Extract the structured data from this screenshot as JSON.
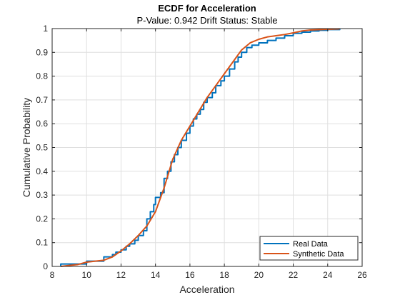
{
  "chart_data": {
    "type": "line",
    "title": "ECDF for Acceleration",
    "subtitle": "P-Value: 0.942 Drift Status: Stable",
    "xlabel": "Acceleration",
    "ylabel": "Cumulative Probability",
    "xlim": [
      8,
      26
    ],
    "ylim": [
      0,
      1
    ],
    "xticks": [
      "8",
      "10",
      "12",
      "14",
      "16",
      "18",
      "20",
      "22",
      "24",
      "26"
    ],
    "yticks": [
      "0",
      "0.1",
      "0.2",
      "0.3",
      "0.4",
      "0.5",
      "0.6",
      "0.7",
      "0.8",
      "0.9",
      "1"
    ],
    "grid": true,
    "legend_position": "bottom-right",
    "series": [
      {
        "name": "Real Data",
        "style": "step",
        "color": "#0072BD",
        "points": [
          [
            8.5,
            0.0
          ],
          [
            8.5,
            0.01
          ],
          [
            9.5,
            0.01
          ],
          [
            10.0,
            0.01
          ],
          [
            10.0,
            0.022
          ],
          [
            11.0,
            0.022
          ],
          [
            11.0,
            0.04
          ],
          [
            11.5,
            0.05
          ],
          [
            11.7,
            0.06
          ],
          [
            12.0,
            0.07
          ],
          [
            12.3,
            0.085
          ],
          [
            12.5,
            0.095
          ],
          [
            12.8,
            0.11
          ],
          [
            13.0,
            0.13
          ],
          [
            13.3,
            0.15
          ],
          [
            13.5,
            0.2
          ],
          [
            13.7,
            0.23
          ],
          [
            13.9,
            0.26
          ],
          [
            14.0,
            0.29
          ],
          [
            14.3,
            0.31
          ],
          [
            14.5,
            0.37
          ],
          [
            14.7,
            0.4
          ],
          [
            14.9,
            0.44
          ],
          [
            15.1,
            0.47
          ],
          [
            15.3,
            0.5
          ],
          [
            15.5,
            0.53
          ],
          [
            15.8,
            0.56
          ],
          [
            16.0,
            0.59
          ],
          [
            16.2,
            0.62
          ],
          [
            16.4,
            0.64
          ],
          [
            16.6,
            0.66
          ],
          [
            16.8,
            0.69
          ],
          [
            17.0,
            0.71
          ],
          [
            17.3,
            0.73
          ],
          [
            17.5,
            0.76
          ],
          [
            17.8,
            0.78
          ],
          [
            18.0,
            0.8
          ],
          [
            18.3,
            0.83
          ],
          [
            18.6,
            0.86
          ],
          [
            18.8,
            0.88
          ],
          [
            19.0,
            0.9
          ],
          [
            19.3,
            0.92
          ],
          [
            19.6,
            0.93
          ],
          [
            20.0,
            0.94
          ],
          [
            20.5,
            0.95
          ],
          [
            21.0,
            0.96
          ],
          [
            21.5,
            0.97
          ],
          [
            22.0,
            0.98
          ],
          [
            22.5,
            0.985
          ],
          [
            23.0,
            0.99
          ],
          [
            23.5,
            0.993
          ],
          [
            24.0,
            0.996
          ],
          [
            24.7,
            0.998
          ]
        ]
      },
      {
        "name": "Synthetic Data",
        "style": "smooth",
        "color": "#D95319",
        "points": [
          [
            8.5,
            0.0
          ],
          [
            9.0,
            0.004
          ],
          [
            9.5,
            0.008
          ],
          [
            10.0,
            0.018
          ],
          [
            10.5,
            0.022
          ],
          [
            11.0,
            0.026
          ],
          [
            11.5,
            0.04
          ],
          [
            12.0,
            0.065
          ],
          [
            12.5,
            0.095
          ],
          [
            13.0,
            0.13
          ],
          [
            13.5,
            0.17
          ],
          [
            14.0,
            0.23
          ],
          [
            14.5,
            0.33
          ],
          [
            15.0,
            0.45
          ],
          [
            15.5,
            0.53
          ],
          [
            16.0,
            0.59
          ],
          [
            16.5,
            0.65
          ],
          [
            17.0,
            0.71
          ],
          [
            17.5,
            0.76
          ],
          [
            18.0,
            0.81
          ],
          [
            18.5,
            0.86
          ],
          [
            19.0,
            0.91
          ],
          [
            19.5,
            0.94
          ],
          [
            20.0,
            0.955
          ],
          [
            20.5,
            0.965
          ],
          [
            21.0,
            0.97
          ],
          [
            21.5,
            0.975
          ],
          [
            22.0,
            0.982
          ],
          [
            22.5,
            0.99
          ],
          [
            23.0,
            0.994
          ],
          [
            24.0,
            0.997
          ],
          [
            24.7,
            0.999
          ]
        ]
      }
    ]
  }
}
